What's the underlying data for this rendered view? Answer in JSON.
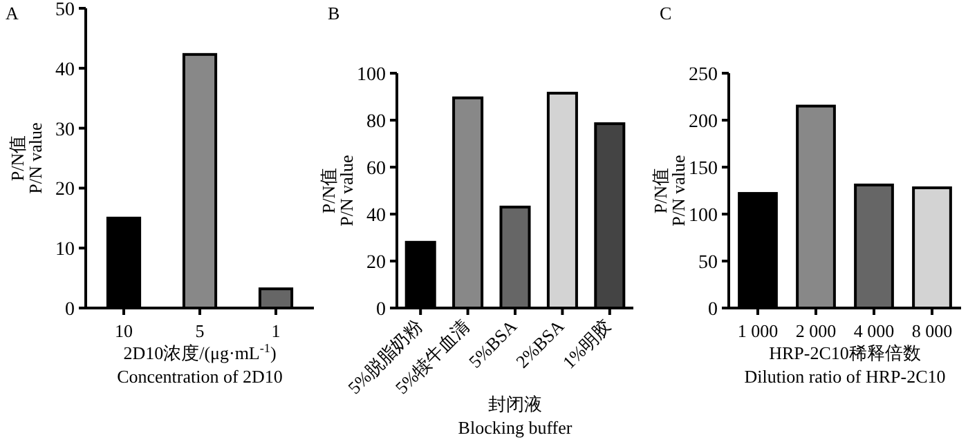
{
  "chart_data": [
    {
      "type": "bar",
      "title": "A",
      "categories": [
        "10",
        "5",
        "1"
      ],
      "values": [
        15,
        42.3,
        3.2
      ],
      "colors": [
        "#000000",
        "#888888",
        "#666666"
      ],
      "ylim": [
        0,
        50
      ],
      "yticks": [
        0,
        10,
        20,
        30,
        40,
        50
      ],
      "xlabel": "2D10浓度/(μg·mL$^{-1}$)\nConcentration of 2D10",
      "ylabel": "P/N值\nP/N value"
    },
    {
      "type": "bar",
      "title": "B",
      "categories": [
        "5%脱脂奶粉",
        "5%犊牛血清",
        "5%BSA",
        "2%BSA",
        "1%明胶"
      ],
      "values": [
        28,
        89.5,
        43,
        91.5,
        78.5
      ],
      "colors": [
        "#000000",
        "#888888",
        "#666666",
        "#d3d3d3",
        "#444444"
      ],
      "ylim": [
        0,
        100
      ],
      "yticks": [
        0,
        20,
        40,
        60,
        80,
        100
      ],
      "xlabel": "封闭液\nBlocking buffer",
      "ylabel": "P/N值\nP/N value"
    },
    {
      "type": "bar",
      "title": "C",
      "categories": [
        "1 000",
        "2 000",
        "4 000",
        "8 000"
      ],
      "values": [
        122,
        215,
        131,
        128
      ],
      "colors": [
        "#000000",
        "#888888",
        "#666666",
        "#d3d3d3"
      ],
      "ylim": [
        0,
        250
      ],
      "yticks": [
        0,
        50,
        100,
        150,
        200,
        250
      ],
      "xlabel": "HRP-2C10稀释倍数\nDilution ratio of HRP-2C10",
      "ylabel": "P/N值\nP/N value"
    }
  ]
}
